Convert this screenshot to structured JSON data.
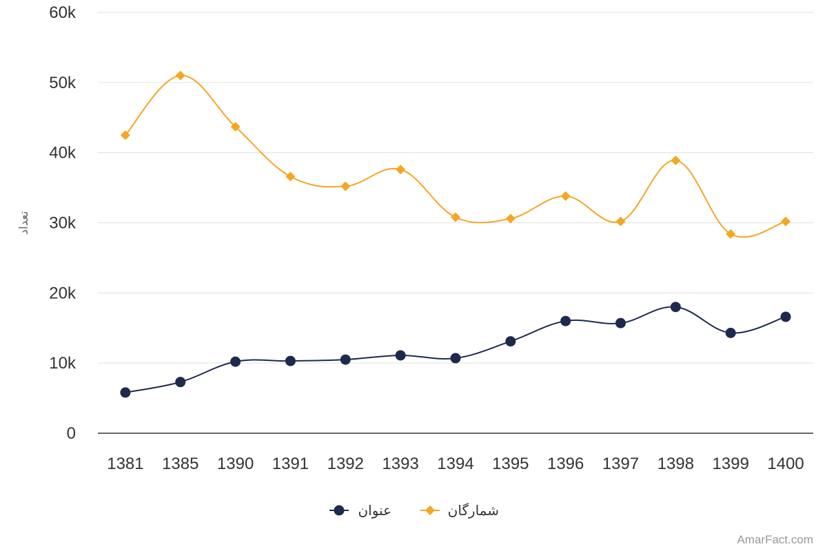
{
  "chart_data": {
    "type": "line",
    "categories": [
      "1381",
      "1385",
      "1390",
      "1391",
      "1392",
      "1393",
      "1394",
      "1395",
      "1396",
      "1397",
      "1398",
      "1399",
      "1400"
    ],
    "series": [
      {
        "name": "عنوان",
        "color": "#1c2a4d",
        "marker": "circle",
        "values": [
          5800,
          7300,
          10200,
          10300,
          10500,
          11100,
          10700,
          13100,
          16000,
          15700,
          18000,
          14300,
          16600
        ]
      },
      {
        "name": "شمارگان",
        "color": "#f5a623",
        "marker": "diamond",
        "values": [
          42500,
          51000,
          43700,
          36600,
          35200,
          37600,
          30800,
          30600,
          33800,
          30200,
          38900,
          28400,
          30200
        ]
      }
    ],
    "ylabel": "تعداد",
    "ylim": [
      0,
      60000
    ],
    "yticks": [
      0,
      10000,
      20000,
      30000,
      40000,
      50000,
      60000
    ],
    "ytick_labels": [
      "0",
      "10k",
      "20k",
      "30k",
      "40k",
      "50k",
      "60k"
    ],
    "grid": true,
    "legend_position": "bottom-center"
  },
  "credit": "AmarFact.com"
}
